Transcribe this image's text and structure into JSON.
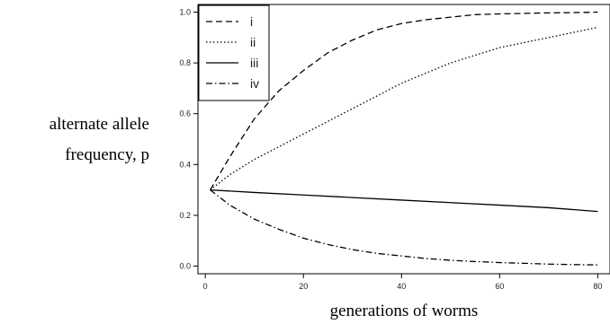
{
  "chart_data": {
    "type": "line",
    "title": "",
    "xlabel": "generations of worms",
    "ylabel_lines": [
      "alternate allele",
      "frequency, p"
    ],
    "xlim": [
      -1.5,
      82.5
    ],
    "ylim": [
      -0.03,
      1.03
    ],
    "xticks": [
      0,
      20,
      40,
      60,
      80
    ],
    "yticks": [
      0.0,
      0.2,
      0.4,
      0.6,
      0.8,
      1.0
    ],
    "xtick_labels": [
      "0",
      "20",
      "40",
      "60",
      "80"
    ],
    "ytick_labels": [
      "0.0",
      "0.2",
      "0.4",
      "0.6",
      "0.8",
      "1.0"
    ],
    "grid": false,
    "legend_position": "top-left",
    "series": [
      {
        "name": "i",
        "dash": "dashed",
        "x": [
          1,
          5,
          10,
          15,
          20,
          25,
          30,
          35,
          40,
          45,
          50,
          55,
          60,
          65,
          70,
          75,
          80
        ],
        "y": [
          0.3,
          0.43,
          0.58,
          0.69,
          0.77,
          0.84,
          0.89,
          0.93,
          0.955,
          0.97,
          0.98,
          0.99,
          0.993,
          0.995,
          0.997,
          0.998,
          1.0
        ]
      },
      {
        "name": "ii",
        "dash": "dotted",
        "x": [
          1,
          5,
          10,
          15,
          20,
          25,
          30,
          35,
          40,
          45,
          50,
          55,
          60,
          65,
          70,
          75,
          80
        ],
        "y": [
          0.3,
          0.36,
          0.42,
          0.47,
          0.52,
          0.57,
          0.62,
          0.67,
          0.72,
          0.76,
          0.8,
          0.83,
          0.86,
          0.88,
          0.9,
          0.92,
          0.94
        ]
      },
      {
        "name": "iii",
        "dash": "solid",
        "x": [
          1,
          10,
          20,
          30,
          40,
          50,
          60,
          70,
          80
        ],
        "y": [
          0.3,
          0.29,
          0.28,
          0.27,
          0.26,
          0.25,
          0.24,
          0.23,
          0.215
        ]
      },
      {
        "name": "iv",
        "dash": "dashdot",
        "x": [
          1,
          5,
          10,
          15,
          20,
          25,
          30,
          35,
          40,
          45,
          50,
          55,
          60,
          65,
          70,
          75,
          80
        ],
        "y": [
          0.3,
          0.24,
          0.185,
          0.145,
          0.11,
          0.085,
          0.065,
          0.05,
          0.04,
          0.03,
          0.023,
          0.018,
          0.014,
          0.011,
          0.008,
          0.006,
          0.005
        ]
      }
    ]
  }
}
